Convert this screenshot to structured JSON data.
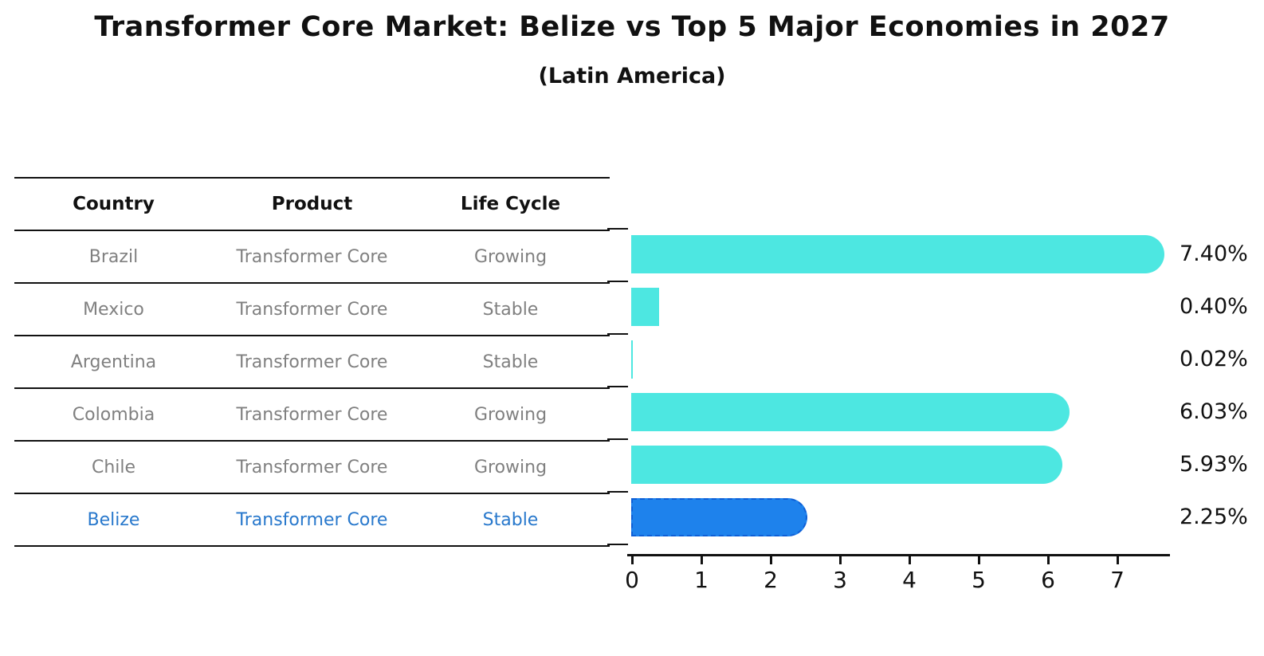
{
  "title": "Transformer Core Market: Belize vs Top 5 Major Economies in 2027",
  "subtitle": "(Latin America)",
  "table": {
    "headers": [
      "Country",
      "Product",
      "Life Cycle"
    ],
    "rows": [
      {
        "country": "Brazil",
        "product": "Transformer Core",
        "life_cycle": "Growing"
      },
      {
        "country": "Mexico",
        "product": "Transformer Core",
        "life_cycle": "Stable"
      },
      {
        "country": "Argentina",
        "product": "Transformer Core",
        "life_cycle": "Stable"
      },
      {
        "country": "Colombia",
        "product": "Transformer Core",
        "life_cycle": "Growing"
      },
      {
        "country": "Chile",
        "product": "Transformer Core",
        "life_cycle": "Growing"
      },
      {
        "country": "Belize",
        "product": "Transformer Core",
        "life_cycle": "Stable"
      }
    ],
    "highlight_row": "Belize"
  },
  "chart_data": {
    "type": "bar",
    "orientation": "horizontal",
    "title": "Transformer Core Market: Belize vs Top 5 Major Economies in 2027",
    "subtitle": "(Latin America)",
    "categories": [
      "Brazil",
      "Mexico",
      "Argentina",
      "Colombia",
      "Chile",
      "Belize"
    ],
    "values": [
      7.4,
      0.4,
      0.02,
      6.03,
      5.93,
      2.25
    ],
    "value_labels": [
      "7.40%",
      "0.40%",
      "0.02%",
      "6.03%",
      "5.93%",
      "2.25%"
    ],
    "x_ticks": [
      "0",
      "1",
      "2",
      "3",
      "4",
      "5",
      "6",
      "7"
    ],
    "xlim": [
      0,
      7.75
    ],
    "grid": false,
    "legend": false,
    "highlight_category": "Belize",
    "colors": {
      "bar": "#4DE7E1",
      "highlight_bar": "#1E82EC",
      "highlight_edge": "#0E5FD6",
      "axis": "#111111",
      "value_label": "#111111",
      "table_text": "#808080",
      "table_header_text": "#111111",
      "highlight_text": "#2878CC"
    }
  }
}
